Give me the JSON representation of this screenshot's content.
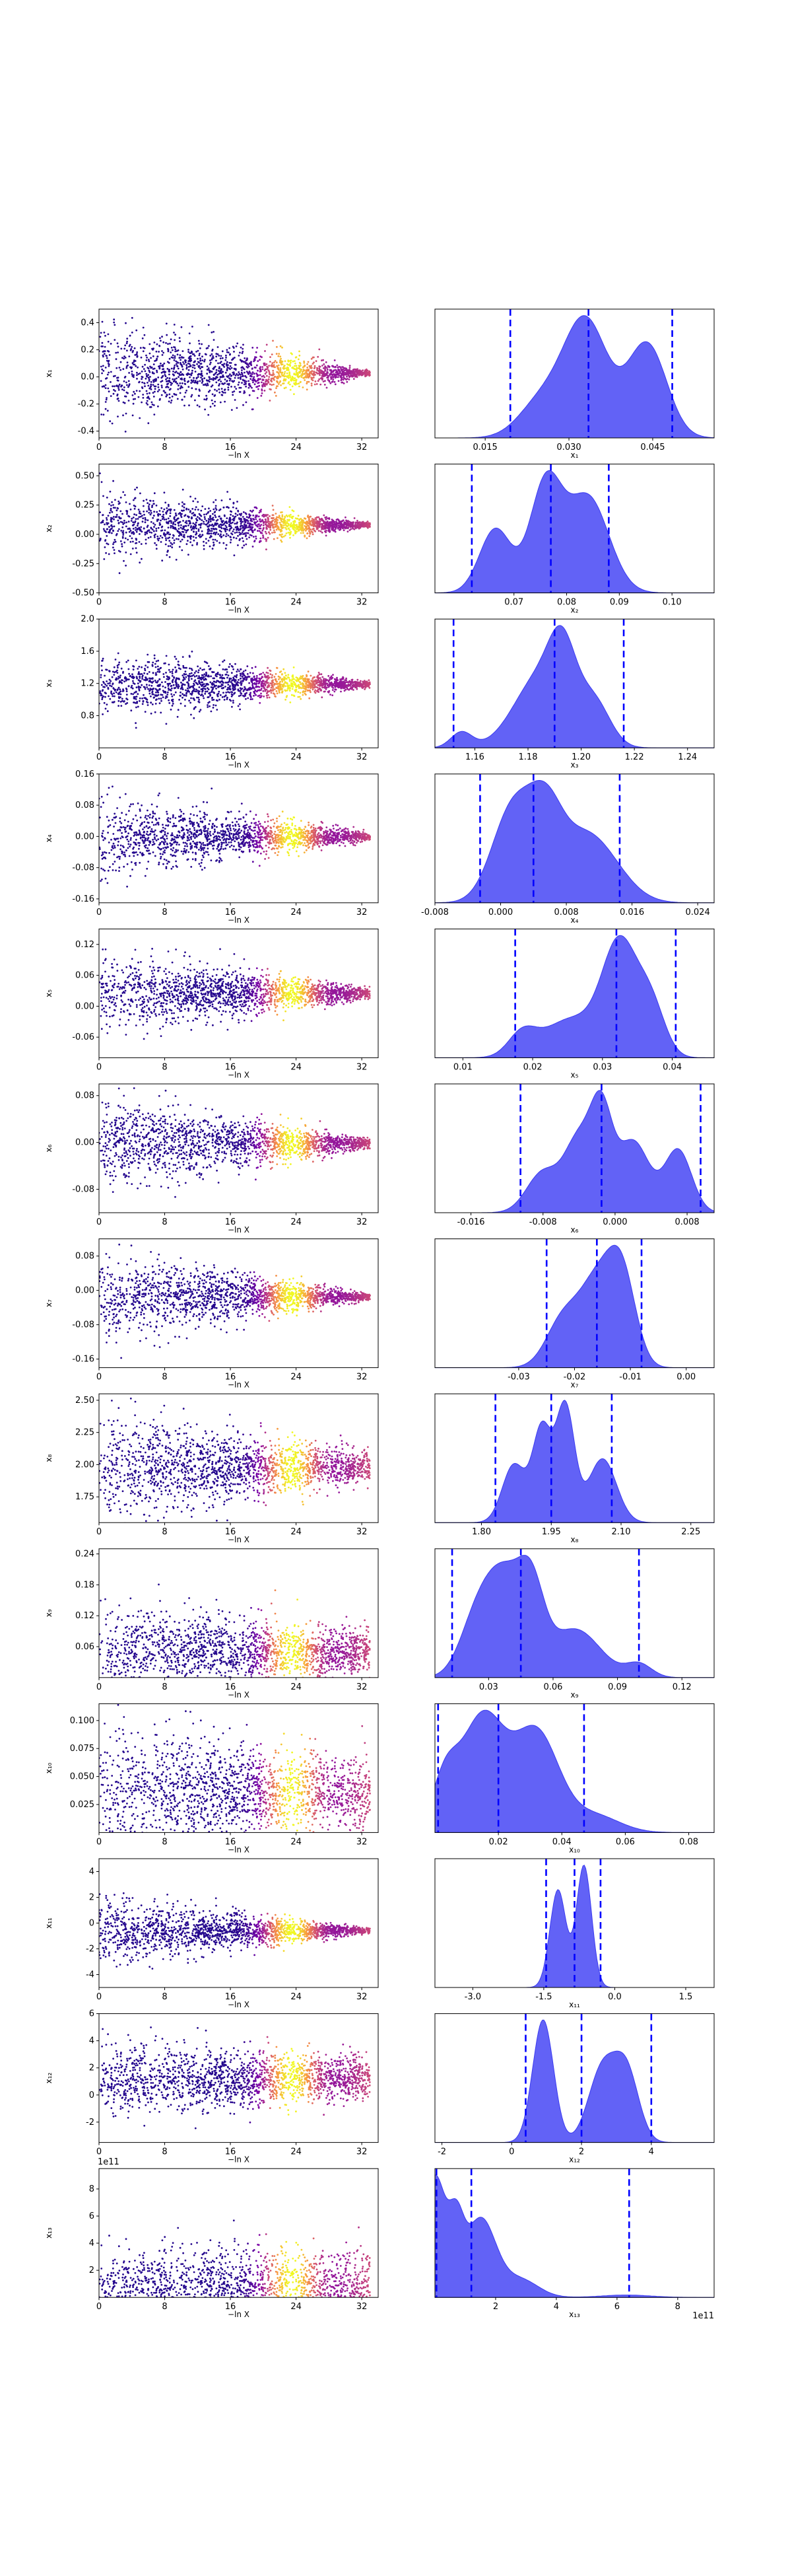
{
  "chart_data": {
    "type": "trace-plot",
    "left_xlabel": "−ln X",
    "left_xticks": [
      0,
      8,
      16,
      24,
      32
    ],
    "left_xlim": [
      0,
      34
    ],
    "colormap": "plasma",
    "quantile_line_color": "#0000ff",
    "kde_fill_color": "#5555f5",
    "params": [
      {
        "label": "x1",
        "left_ylim": [
          -0.45,
          0.5
        ],
        "left_yticks": [
          "-0.4",
          "-0.2",
          "0.0",
          "0.2",
          "0.4"
        ],
        "left_ytick_values": [
          -0.4,
          -0.2,
          0.0,
          0.2,
          0.4
        ],
        "center": 0.03,
        "spread_start": 0.18,
        "spread_end": 0.01,
        "right_xlim": [
          0.006,
          0.056
        ],
        "right_xticks": [
          "0.015",
          "0.030",
          "0.045"
        ],
        "right_xtick_values": [
          0.015,
          0.03,
          0.045
        ],
        "quantiles": [
          0.0195,
          0.0335,
          0.0485
        ],
        "peaks": [
          [
            0.025,
            0.3,
            0.004
          ],
          [
            0.033,
            1.0,
            0.004
          ],
          [
            0.044,
            0.8,
            0.0035
          ]
        ]
      },
      {
        "label": "x2",
        "left_ylim": [
          -0.5,
          0.6
        ],
        "left_yticks": [
          "-0.50",
          "-0.25",
          "0.00",
          "0.25",
          "0.50"
        ],
        "left_ytick_values": [
          -0.5,
          -0.25,
          0.0,
          0.25,
          0.5
        ],
        "center": 0.08,
        "spread_start": 0.15,
        "spread_end": 0.01,
        "right_xlim": [
          0.055,
          0.108
        ],
        "right_xticks": [
          "0.07",
          "0.08",
          "0.09",
          "0.10"
        ],
        "right_xtick_values": [
          0.07,
          0.08,
          0.09,
          0.1
        ],
        "quantiles": [
          0.062,
          0.077,
          0.088
        ],
        "peaks": [
          [
            0.0665,
            0.6,
            0.003
          ],
          [
            0.076,
            1.0,
            0.003
          ],
          [
            0.084,
            0.9,
            0.004
          ]
        ]
      },
      {
        "label": "x3",
        "left_ylim": [
          0.4,
          2.0
        ],
        "left_yticks": [
          "0.8",
          "1.2",
          "1.6",
          "2.0"
        ],
        "left_ytick_values": [
          0.8,
          1.2,
          1.6,
          2.0
        ],
        "center": 1.19,
        "spread_start": 0.2,
        "spread_end": 0.02,
        "right_xlim": [
          1.145,
          1.25
        ],
        "right_xticks": [
          "1.16",
          "1.18",
          "1.20",
          "1.22",
          "1.24"
        ],
        "right_xtick_values": [
          1.16,
          1.18,
          1.2,
          1.22,
          1.24
        ],
        "quantiles": [
          1.152,
          1.19,
          1.216
        ],
        "peaks": [
          [
            1.155,
            0.15,
            0.004
          ],
          [
            1.185,
            0.7,
            0.01
          ],
          [
            1.193,
            0.6,
            0.005
          ],
          [
            1.205,
            0.4,
            0.006
          ]
        ]
      },
      {
        "label": "x4",
        "left_ylim": [
          -0.17,
          0.16
        ],
        "left_yticks": [
          "-0.16",
          "-0.08",
          "0.00",
          "0.08",
          "0.16"
        ],
        "left_ytick_values": [
          -0.16,
          -0.08,
          0.0,
          0.08,
          0.16
        ],
        "center": 0.0,
        "spread_start": 0.05,
        "spread_end": 0.005,
        "right_xlim": [
          -0.008,
          0.026
        ],
        "right_xticks": [
          "-0.008",
          "0.000",
          "0.008",
          "0.016",
          "0.024"
        ],
        "right_xtick_values": [
          -0.008,
          0.0,
          0.008,
          0.016,
          0.024
        ],
        "quantiles": [
          -0.0025,
          0.004,
          0.0145
        ],
        "peaks": [
          [
            0.0015,
            1.0,
            0.0025
          ],
          [
            0.0055,
            0.75,
            0.002
          ],
          [
            0.0095,
            0.55,
            0.003
          ],
          [
            0.013,
            0.3,
            0.003
          ]
        ]
      },
      {
        "label": "x5",
        "left_ylim": [
          -0.1,
          0.15
        ],
        "left_yticks": [
          "-0.06",
          "0.00",
          "0.06",
          "0.12"
        ],
        "left_ytick_values": [
          -0.06,
          0.0,
          0.06,
          0.12
        ],
        "center": 0.025,
        "spread_start": 0.04,
        "spread_end": 0.005,
        "right_xlim": [
          0.006,
          0.046
        ],
        "right_xticks": [
          "0.01",
          "0.02",
          "0.03",
          "0.04"
        ],
        "right_xtick_values": [
          0.01,
          0.02,
          0.03,
          0.04
        ],
        "quantiles": [
          0.0175,
          0.032,
          0.0405
        ],
        "peaks": [
          [
            0.0185,
            0.2,
            0.002
          ],
          [
            0.0255,
            0.35,
            0.004
          ],
          [
            0.0325,
            1.0,
            0.0025
          ],
          [
            0.037,
            0.45,
            0.002
          ]
        ]
      },
      {
        "label": "x6",
        "left_ylim": [
          -0.12,
          0.1
        ],
        "left_yticks": [
          "-0.08",
          "0.00",
          "0.08"
        ],
        "left_ytick_values": [
          -0.08,
          0.0,
          0.08
        ],
        "center": -0.002,
        "spread_start": 0.04,
        "spread_end": 0.004,
        "right_xlim": [
          -0.02,
          0.011
        ],
        "right_xticks": [
          "-0.016",
          "-0.008",
          "0.000",
          "0.008"
        ],
        "right_xtick_values": [
          -0.016,
          -0.008,
          0.0,
          0.008
        ],
        "quantiles": [
          -0.0105,
          -0.0015,
          0.0095
        ],
        "peaks": [
          [
            -0.008,
            0.45,
            0.0018
          ],
          [
            -0.004,
            0.8,
            0.0016
          ],
          [
            -0.0015,
            1.0,
            0.0012
          ],
          [
            0.002,
            0.8,
            0.0018
          ],
          [
            0.007,
            0.7,
            0.0015
          ]
        ]
      },
      {
        "label": "x7",
        "left_ylim": [
          -0.18,
          0.12
        ],
        "left_yticks": [
          "-0.16",
          "-0.08",
          "0.00",
          "0.08"
        ],
        "left_ytick_values": [
          -0.16,
          -0.08,
          0.0,
          0.08
        ],
        "center": -0.015,
        "spread_start": 0.05,
        "spread_end": 0.004,
        "right_xlim": [
          -0.045,
          0.005
        ],
        "right_xticks": [
          "-0.03",
          "-0.02",
          "-0.01",
          "0.00"
        ],
        "right_xtick_values": [
          -0.03,
          -0.02,
          -0.01,
          0.0
        ],
        "quantiles": [
          -0.025,
          -0.016,
          -0.008
        ],
        "peaks": [
          [
            -0.022,
            0.55,
            0.003
          ],
          [
            -0.016,
            0.9,
            0.003
          ],
          [
            -0.0115,
            1.0,
            0.0025
          ]
        ]
      },
      {
        "label": "x8",
        "left_ylim": [
          1.55,
          2.55
        ],
        "left_yticks": [
          "1.75",
          "2.00",
          "2.25",
          "2.50"
        ],
        "left_ytick_values": [
          1.75,
          2.0,
          2.25,
          2.5
        ],
        "center": 1.98,
        "spread_start": 0.2,
        "spread_end": 0.06,
        "right_xlim": [
          1.7,
          2.3
        ],
        "right_xticks": [
          "1.80",
          "1.95",
          "2.10",
          "2.25"
        ],
        "right_xtick_values": [
          1.8,
          1.95,
          2.1,
          2.25
        ],
        "quantiles": [
          1.83,
          1.95,
          2.08
        ],
        "peaks": [
          [
            1.87,
            0.5,
            0.025
          ],
          [
            1.93,
            0.8,
            0.02
          ],
          [
            1.98,
            1.0,
            0.02
          ],
          [
            2.06,
            0.55,
            0.03
          ]
        ]
      },
      {
        "label": "x9",
        "left_ylim": [
          0.0,
          0.25
        ],
        "left_yticks": [
          "0.06",
          "0.12",
          "0.18",
          "0.24"
        ],
        "left_ytick_values": [
          0.06,
          0.12,
          0.18,
          0.24
        ],
        "center": 0.05,
        "spread_start": 0.045,
        "spread_end": 0.02,
        "right_xlim": [
          0.005,
          0.135
        ],
        "right_xticks": [
          "0.03",
          "0.06",
          "0.09",
          "0.12"
        ],
        "right_xtick_values": [
          0.03,
          0.06,
          0.09,
          0.12
        ],
        "quantiles": [
          0.013,
          0.045,
          0.1
        ],
        "peaks": [
          [
            0.025,
            0.7,
            0.008
          ],
          [
            0.038,
            1.0,
            0.008
          ],
          [
            0.05,
            0.85,
            0.006
          ],
          [
            0.07,
            0.55,
            0.012
          ],
          [
            0.1,
            0.15,
            0.006
          ]
        ]
      },
      {
        "label": "x10",
        "left_ylim": [
          0.0,
          0.115
        ],
        "left_yticks": [
          "0.025",
          "0.050",
          "0.075",
          "0.100"
        ],
        "left_ytick_values": [
          0.025,
          0.05,
          0.075,
          0.1
        ],
        "center": 0.035,
        "spread_start": 0.03,
        "spread_end": 0.015,
        "right_xlim": [
          0.0,
          0.088
        ],
        "right_xticks": [
          "0.02",
          "0.04",
          "0.06",
          "0.08"
        ],
        "right_xtick_values": [
          0.02,
          0.04,
          0.06,
          0.08
        ],
        "quantiles": [
          0.001,
          0.02,
          0.047
        ],
        "peaks": [
          [
            0.003,
            0.4,
            0.004
          ],
          [
            0.015,
            1.0,
            0.007
          ],
          [
            0.032,
            0.85,
            0.007
          ],
          [
            0.05,
            0.15,
            0.008
          ]
        ]
      },
      {
        "label": "x11",
        "left_ylim": [
          -5,
          5
        ],
        "left_yticks": [
          "-4",
          "-2",
          "0",
          "2",
          "4"
        ],
        "left_ytick_values": [
          -4,
          -2,
          0,
          2,
          4
        ],
        "center": -0.6,
        "spread_start": 1.3,
        "spread_end": 0.1,
        "right_xlim": [
          -3.8,
          2.1
        ],
        "right_xticks": [
          "-3.0",
          "-1.5",
          "0.0",
          "1.5"
        ],
        "right_xtick_values": [
          -3.0,
          -1.5,
          0.0,
          1.5
        ],
        "quantiles": [
          -1.45,
          -0.85,
          -0.3
        ],
        "peaks": [
          [
            -1.2,
            0.8,
            0.17
          ],
          [
            -0.65,
            1.0,
            0.16
          ]
        ]
      },
      {
        "label": "x12",
        "left_ylim": [
          -3.5,
          6
        ],
        "left_yticks": [
          "-2",
          "0",
          "2",
          "4",
          "6"
        ],
        "left_ytick_values": [
          -2,
          0,
          2,
          4,
          6
        ],
        "center": 1.2,
        "spread_start": 1.3,
        "spread_end": 0.8,
        "right_xlim": [
          -2.2,
          5.8
        ],
        "right_xticks": [
          "-2",
          "0",
          "2",
          "4"
        ],
        "right_xtick_values": [
          -2,
          0,
          2,
          4
        ],
        "quantiles": [
          0.4,
          2.0,
          4.0
        ],
        "peaks": [
          [
            0.9,
            1.0,
            0.3
          ],
          [
            2.6,
            0.6,
            0.4
          ],
          [
            3.3,
            0.55,
            0.35
          ]
        ]
      },
      {
        "label": "x13",
        "left_ylim": [
          0.0,
          9.5
        ],
        "left_yticks": [
          "2",
          "4",
          "6",
          "8"
        ],
        "left_ytick_values": [
          2,
          4,
          6,
          8
        ],
        "left_offset": "1e11",
        "right_offset": "1e11",
        "center": 0.6,
        "spread_start": 1.5,
        "spread_end": 1.5,
        "right_xlim": [
          0.0,
          9.2
        ],
        "right_xticks": [
          "2",
          "4",
          "6",
          "8"
        ],
        "right_xtick_values": [
          2,
          4,
          6,
          8
        ],
        "quantiles": [
          0.05,
          1.2,
          6.4
        ],
        "peaks": [
          [
            0.0,
            1.0,
            0.35
          ],
          [
            0.7,
            0.5,
            0.25
          ],
          [
            1.5,
            0.65,
            0.5
          ],
          [
            2.8,
            0.15,
            0.6
          ],
          [
            6.3,
            0.02,
            0.8
          ]
        ]
      }
    ]
  }
}
